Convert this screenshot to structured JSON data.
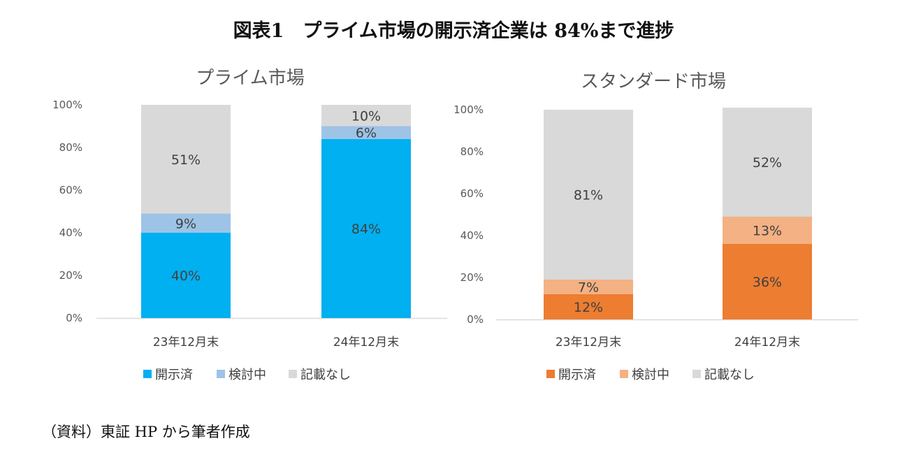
{
  "title": "図表1　プライム市場の開示済企業は 84%まで進捗",
  "source": "（資料）東証 HP から筆者作成",
  "chart_data": [
    {
      "type": "bar",
      "stacked": true,
      "title": "プライム市場",
      "categories": [
        "23年12月末",
        "24年12月末"
      ],
      "series": [
        {
          "name": "開示済",
          "color": "#00B0F0",
          "values": [
            40,
            84
          ]
        },
        {
          "name": "検討中",
          "color": "#9DC3E6",
          "values": [
            9,
            6
          ]
        },
        {
          "name": "記載なし",
          "color": "#D9D9D9",
          "values": [
            51,
            10
          ]
        }
      ],
      "yticks": [
        "0%",
        "20%",
        "40%",
        "60%",
        "80%",
        "100%"
      ],
      "ylim": [
        0,
        100
      ],
      "grid": false,
      "legend": "bottom"
    },
    {
      "type": "bar",
      "stacked": true,
      "title": "スタンダード市場",
      "categories": [
        "23年12月末",
        "24年12月末"
      ],
      "series": [
        {
          "name": "開示済",
          "color": "#ED7D31",
          "values": [
            12,
            36
          ]
        },
        {
          "name": "検討中",
          "color": "#F4B183",
          "values": [
            7,
            13
          ]
        },
        {
          "name": "記載なし",
          "color": "#D9D9D9",
          "values": [
            81,
            52
          ]
        }
      ],
      "yticks": [
        "0%",
        "20%",
        "40%",
        "60%",
        "80%",
        "100%"
      ],
      "ylim": [
        0,
        100
      ],
      "grid": false,
      "legend": "bottom"
    }
  ]
}
